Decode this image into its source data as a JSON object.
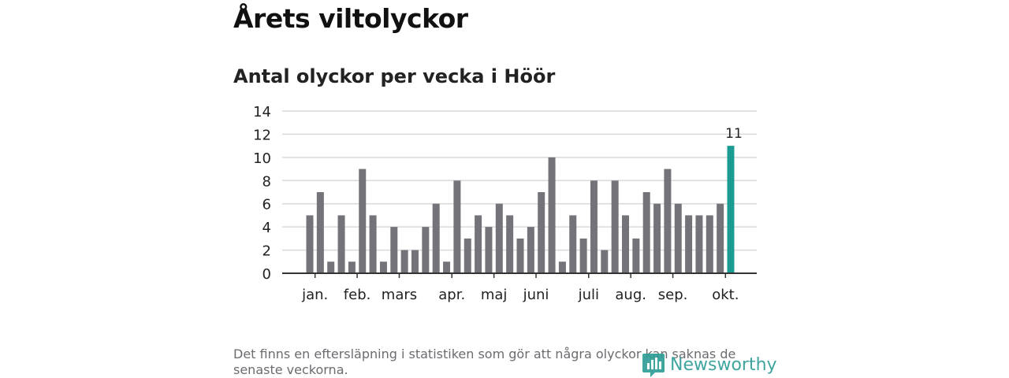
{
  "title": "Årets viltolyckor",
  "footnote": "Det finns en eftersläpning i statistiken som gör att några olyckor kan saknas de senaste veckorna.",
  "brand": {
    "name": "Newsworthy",
    "icon": "newsworthy-logo-icon",
    "color": "#2f9e96"
  },
  "chart_data": {
    "type": "bar",
    "title": "Antal olyckor per vecka i Höör",
    "xlabel": "",
    "ylabel": "",
    "ylim": [
      0,
      14
    ],
    "yticks": [
      "0",
      "2",
      "4",
      "6",
      "8",
      "10",
      "12",
      "14"
    ],
    "grid": true,
    "weeks": [
      1,
      2,
      3,
      4,
      5,
      6,
      7,
      8,
      9,
      10,
      11,
      12,
      13,
      14,
      15,
      16,
      17,
      18,
      19,
      20,
      21,
      22,
      23,
      24,
      25,
      26,
      27,
      28,
      29,
      30,
      31,
      32,
      33,
      34,
      35,
      36,
      37,
      38,
      39,
      40,
      41
    ],
    "values": [
      5,
      7,
      1,
      5,
      1,
      9,
      5,
      1,
      4,
      2,
      2,
      4,
      6,
      1,
      8,
      3,
      5,
      4,
      6,
      5,
      3,
      4,
      7,
      10,
      1,
      5,
      3,
      8,
      2,
      8,
      5,
      3,
      7,
      6,
      9,
      6,
      5,
      5,
      5,
      6,
      11
    ],
    "month_labels": [
      {
        "label": "jan.",
        "week": 1.5
      },
      {
        "label": "feb.",
        "week": 5.5
      },
      {
        "label": "mars",
        "week": 9.5
      },
      {
        "label": "apr.",
        "week": 14.5
      },
      {
        "label": "maj",
        "week": 18.5
      },
      {
        "label": "juni",
        "week": 22.5
      },
      {
        "label": "juli",
        "week": 27.5
      },
      {
        "label": "aug.",
        "week": 31.5
      },
      {
        "label": "sep.",
        "week": 35.5
      },
      {
        "label": "okt.",
        "week": 40.5
      }
    ],
    "highlight_index": 40,
    "highlight_label": "11",
    "colors": {
      "bar": "#737379",
      "highlight": "#1a9c93",
      "grid": "#d9d9d9",
      "axis": "#333333"
    }
  }
}
